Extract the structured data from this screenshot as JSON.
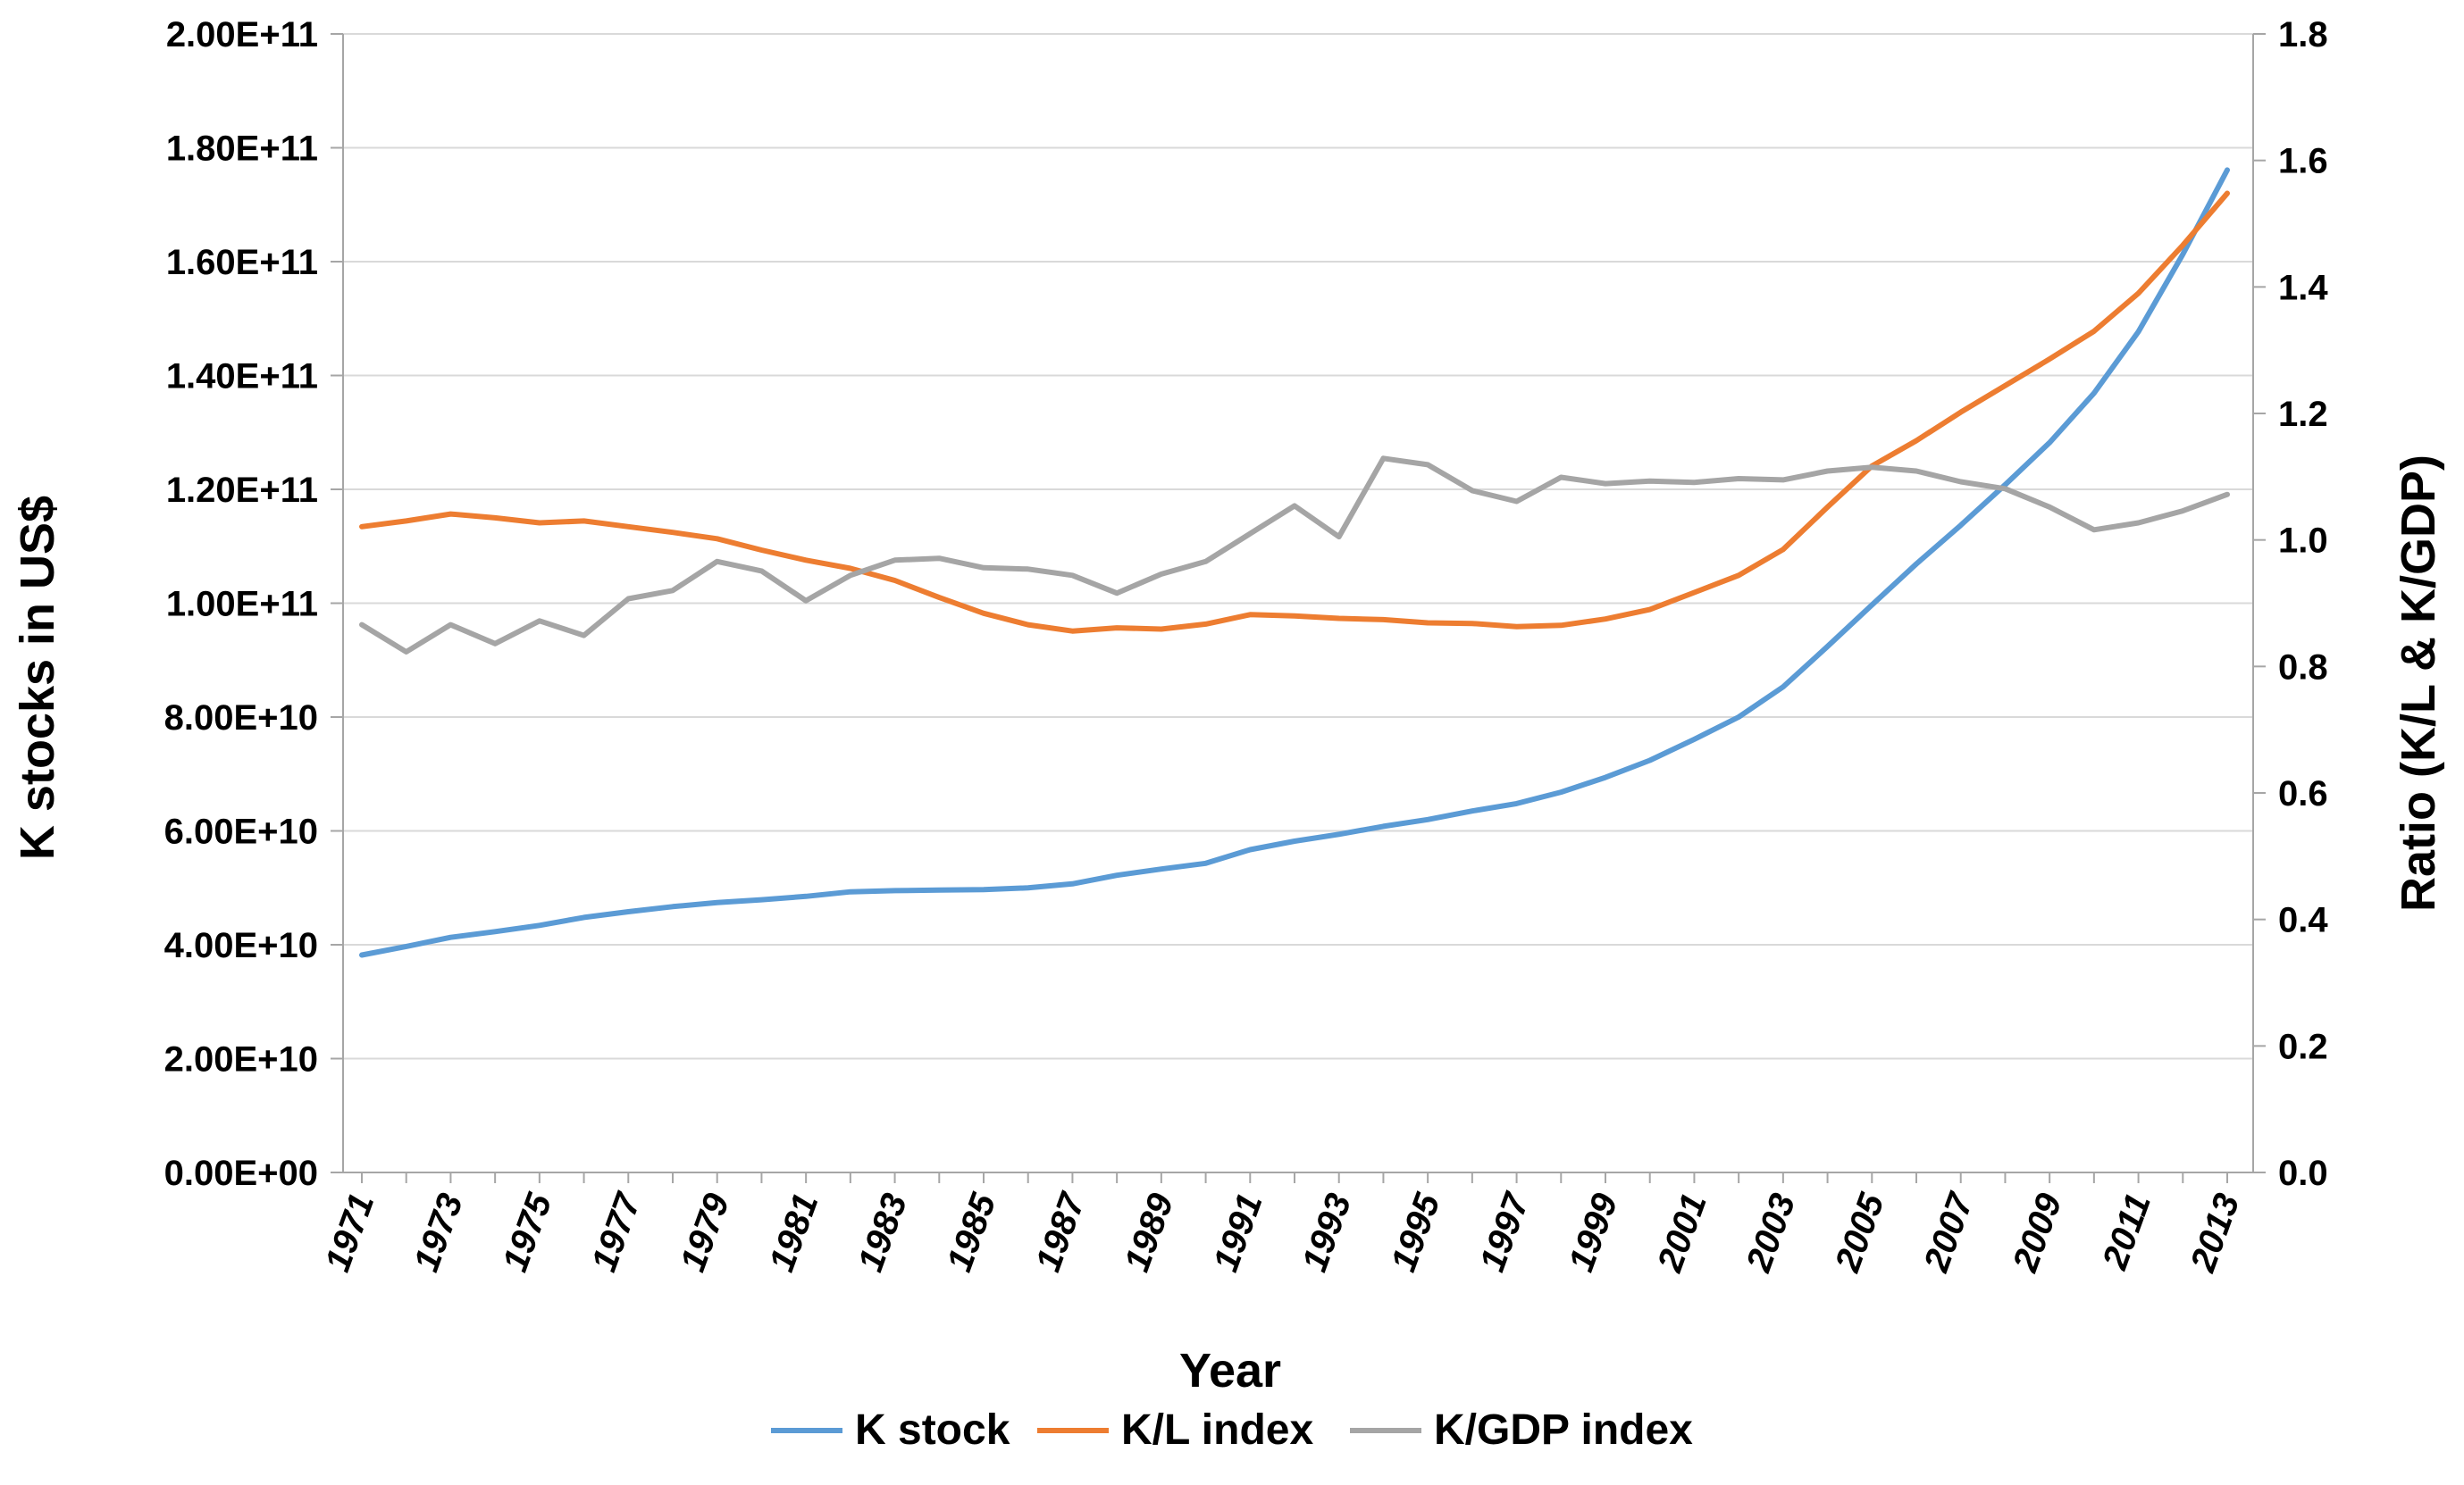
{
  "chart_data": {
    "type": "line",
    "title": "",
    "xlabel": "Year",
    "ylabel_left": "K stocks in US$",
    "ylabel_right": "Ratio (K/L & K/GDP)",
    "x": [
      1971,
      1972,
      1973,
      1974,
      1975,
      1976,
      1977,
      1978,
      1979,
      1980,
      1981,
      1982,
      1983,
      1984,
      1985,
      1986,
      1987,
      1988,
      1989,
      1990,
      1991,
      1992,
      1993,
      1994,
      1995,
      1996,
      1997,
      1998,
      1999,
      2000,
      2001,
      2002,
      2003,
      2004,
      2005,
      2006,
      2007,
      2008,
      2009,
      2010,
      2011,
      2012,
      2013
    ],
    "x_tick_labels": [
      "1971",
      "1973",
      "1975",
      "1977",
      "1979",
      "1981",
      "1983",
      "1985",
      "1987",
      "1989",
      "1991",
      "1993",
      "1995",
      "1997",
      "1999",
      "2001",
      "2003",
      "2005",
      "2007",
      "2009",
      "2011",
      "2013"
    ],
    "y_left_range": [
      0,
      200000000000
    ],
    "y_left_ticks": [
      0,
      20000000000,
      40000000000,
      60000000000,
      80000000000,
      100000000000,
      120000000000,
      140000000000,
      160000000000,
      180000000000,
      200000000000
    ],
    "y_left_tick_labels": [
      "0.00E+00",
      "2.00E+10",
      "4.00E+10",
      "6.00E+10",
      "8.00E+10",
      "1.00E+11",
      "1.20E+11",
      "1.40E+11",
      "1.60E+11",
      "1.80E+11",
      "2.00E+11"
    ],
    "y_right_range": [
      0,
      1.8
    ],
    "y_right_ticks": [
      0,
      0.2,
      0.4,
      0.6,
      0.8,
      1.0,
      1.2,
      1.4,
      1.6,
      1.8
    ],
    "y_right_tick_labels": [
      "0.0",
      "0.2",
      "0.4",
      "0.6",
      "0.8",
      "1.0",
      "1.2",
      "1.4",
      "1.6",
      "1.8"
    ],
    "grid": true,
    "legend_position": "bottom",
    "series": [
      {
        "name": "K stock",
        "axis": "left",
        "color": "#5B9BD5",
        "values": [
          38200000000,
          39700000000,
          41300000000,
          42300000000,
          43400000000,
          44800000000,
          45800000000,
          46700000000,
          47400000000,
          47900000000,
          48500000000,
          49300000000,
          49500000000,
          49600000000,
          49700000000,
          50000000000,
          50700000000,
          52200000000,
          53300000000,
          54300000000,
          56700000000,
          58200000000,
          59400000000,
          60800000000,
          62000000000,
          63500000000,
          64800000000,
          66800000000,
          69400000000,
          72400000000,
          76100000000,
          80000000000,
          85300000000,
          92400000000,
          99700000000,
          106900000000,
          113700000000,
          120800000000,
          128200000000,
          136900000000,
          147700000000,
          161300000000,
          176100000000
        ]
      },
      {
        "name": "K/L index",
        "axis": "right",
        "color": "#ED7D31",
        "values": [
          1.021,
          1.03,
          1.041,
          1.035,
          1.027,
          1.03,
          1.021,
          1.012,
          1.002,
          0.984,
          0.968,
          0.955,
          0.936,
          0.909,
          0.884,
          0.866,
          0.856,
          0.861,
          0.859,
          0.867,
          0.882,
          0.88,
          0.876,
          0.874,
          0.869,
          0.868,
          0.863,
          0.865,
          0.875,
          0.89,
          0.917,
          0.944,
          0.985,
          1.052,
          1.117,
          1.157,
          1.202,
          1.244,
          1.286,
          1.33,
          1.39,
          1.466,
          1.548
        ]
      },
      {
        "name": "K/GDP index",
        "axis": "right",
        "color": "#A5A5A5",
        "values": [
          0.866,
          0.823,
          0.866,
          0.836,
          0.872,
          0.849,
          0.907,
          0.92,
          0.966,
          0.951,
          0.904,
          0.944,
          0.968,
          0.971,
          0.956,
          0.954,
          0.944,
          0.916,
          0.946,
          0.966,
          1.01,
          1.054,
          1.005,
          1.129,
          1.119,
          1.078,
          1.061,
          1.099,
          1.089,
          1.093,
          1.091,
          1.097,
          1.095,
          1.109,
          1.115,
          1.109,
          1.092,
          1.081,
          1.052,
          1.016,
          1.027,
          1.046,
          1.072
        ]
      }
    ]
  }
}
